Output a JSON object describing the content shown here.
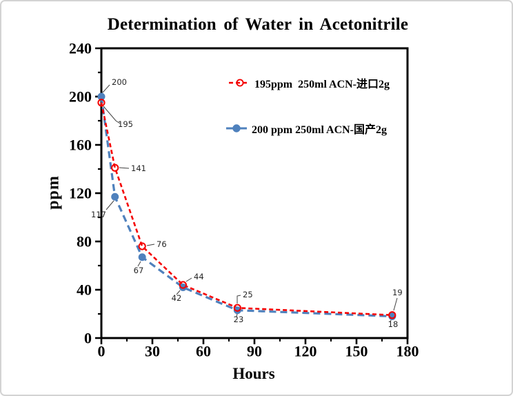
{
  "window": {
    "background": "#ffffff",
    "border_color": "#d3d3d3"
  },
  "chart_data": {
    "type": "line",
    "title": "Determination of Water in Acetonitrile",
    "xlabel": "Hours",
    "ylabel": "ppm",
    "xlim": [
      0,
      180
    ],
    "ylim": [
      0,
      240
    ],
    "x_major_ticks": [
      0,
      30,
      60,
      90,
      120,
      150,
      180
    ],
    "x_minor_step": 15,
    "y_major_ticks": [
      0,
      40,
      80,
      120,
      160,
      200,
      240
    ],
    "y_minor_step": 20,
    "grid": false,
    "legend_position": "inside-upper-right",
    "axis_color": "#000000",
    "label_color": "#262626",
    "leader_color": "#404040",
    "series": [
      {
        "name": "195ppm  250ml ACN-进口2g",
        "color": "#f40000",
        "line_style": "dashed",
        "marker": "open-circle",
        "x": [
          0,
          8,
          24,
          48,
          80,
          171
        ],
        "y": [
          195,
          141,
          76,
          44,
          25,
          19
        ],
        "point_labels": [
          "195",
          "141",
          "76",
          "44",
          "25",
          "19"
        ]
      },
      {
        "name": "200 ppm 250ml ACN-国产2g",
        "color": "#4f81bd",
        "line_style": "dashed",
        "marker": "filled-circle",
        "x": [
          0,
          8,
          24,
          48,
          80,
          171
        ],
        "y": [
          200,
          117,
          67,
          42,
          23,
          18
        ],
        "point_labels": [
          "200",
          "117",
          "67",
          "42",
          "23",
          "18"
        ]
      }
    ]
  }
}
